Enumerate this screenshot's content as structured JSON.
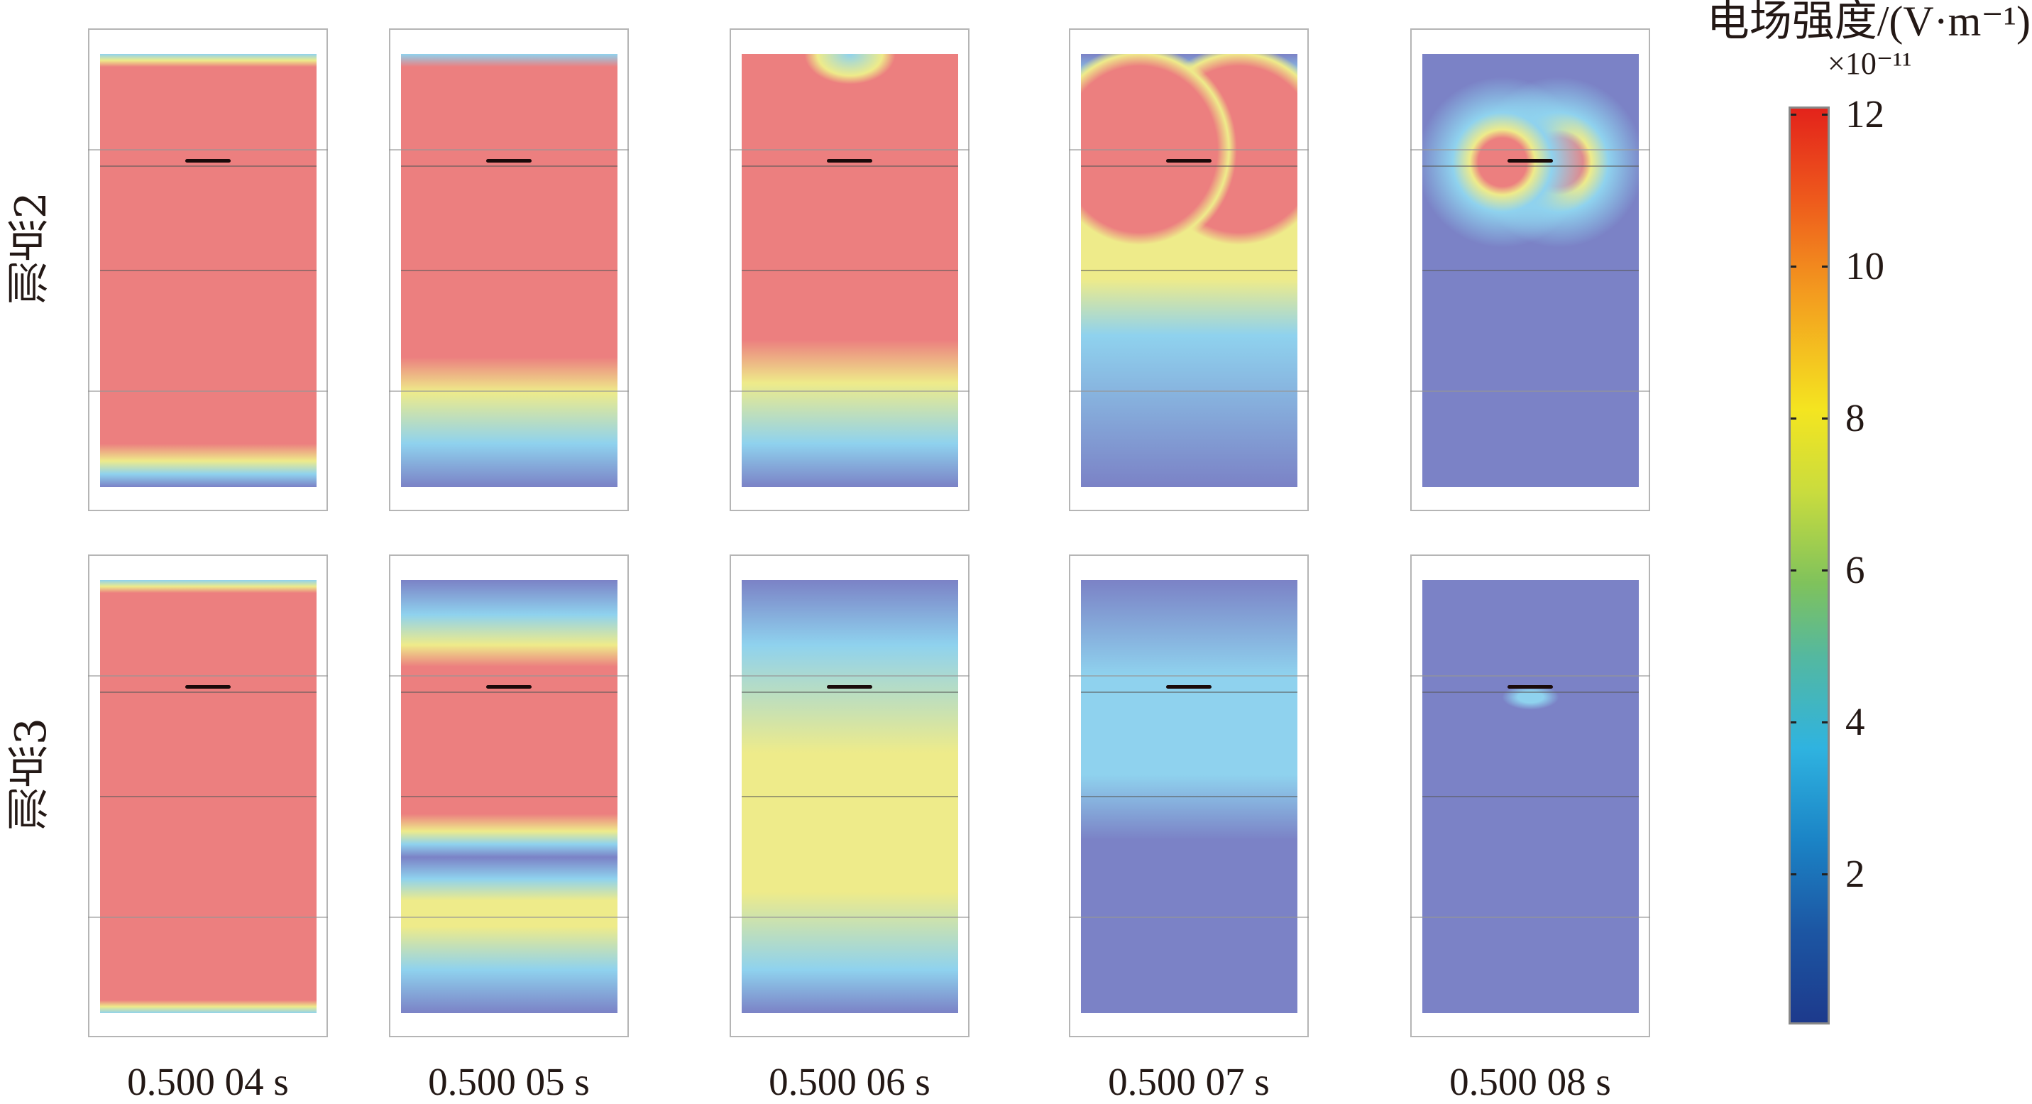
{
  "colorbar": {
    "title": "电场强度/(V·m⁻¹)",
    "exponent": "×10⁻¹¹",
    "ticks": [
      "12",
      "10",
      "8",
      "6",
      "4",
      "2"
    ]
  },
  "rows": [
    {
      "label": "测点2"
    },
    {
      "label": "测点3"
    }
  ],
  "times": [
    "0.500 04 s",
    "0.500 05 s",
    "0.500 06 s",
    "0.500 07 s",
    "0.500 08 s"
  ],
  "chart_data": {
    "type": "heatmap",
    "title": "电场强度/(V·m⁻¹)",
    "colorbar_range": [
      0,
      12
    ],
    "colorbar_scale": "×10⁻¹¹",
    "colorbar_ticks": [
      2,
      4,
      6,
      8,
      10,
      12
    ],
    "row_labels": [
      "测点2",
      "测点3"
    ],
    "column_labels": [
      "0.500 04 s",
      "0.500 05 s",
      "0.500 06 s",
      "0.500 07 s",
      "0.500 08 s"
    ]
  }
}
